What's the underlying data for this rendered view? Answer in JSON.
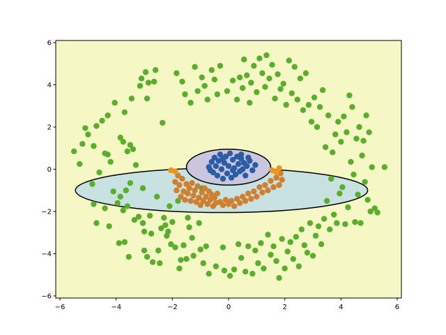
{
  "chart_data": {
    "type": "scatter",
    "title": "",
    "xlabel": "",
    "ylabel": "",
    "xlim": [
      -6.15,
      6.15
    ],
    "ylim": [
      -6.1,
      6.1
    ],
    "xticks": [
      -6,
      -4,
      -2,
      0,
      2,
      4,
      6
    ],
    "yticks": [
      -6,
      -4,
      -2,
      0,
      2,
      4,
      6
    ],
    "xtick_labels": [
      "−6",
      "−4",
      "−2",
      "0",
      "2",
      "4",
      "6"
    ],
    "ytick_labels": [
      "−6",
      "−4",
      "−2",
      "0",
      "2",
      "4",
      "6"
    ],
    "grid": false,
    "legend": "none",
    "colors": {
      "background_region": "#f5f7c5",
      "lower_region": "#c7e2e1",
      "upper_region": "#c9c6de",
      "outer_ring": "#5aaf2a",
      "middle_ring": "#cf7f2e",
      "middle_ring_highlight": "#f0961e",
      "inner_cluster": "#2b5ca6",
      "boundary": "#000000"
    },
    "regions": [
      {
        "name": "lower ellipse",
        "type": "ellipse",
        "center": [
          -0.25,
          -1.0
        ],
        "rx": 5.2,
        "ry": 1.05,
        "color_key": "lower_region"
      },
      {
        "name": "upper cap",
        "type": "ellipse",
        "center": [
          0.0,
          0.1
        ],
        "rx": 1.5,
        "ry": 0.85,
        "color_key": "upper_region"
      }
    ],
    "series": [
      {
        "color_key": "outer_ring",
        "points": [
          [
            -5.5,
            0.85
          ],
          [
            -5.3,
            0.25
          ],
          [
            -5.2,
            1.2
          ],
          [
            -5.1,
            1.95
          ],
          [
            -5.0,
            1.65
          ],
          [
            -4.85,
            -0.7
          ],
          [
            -4.8,
            -1.65
          ],
          [
            -4.8,
            1.1
          ],
          [
            -4.7,
            2.05
          ],
          [
            -4.7,
            -2.55
          ],
          [
            -4.6,
            -0.15
          ],
          [
            -4.5,
            2.3
          ],
          [
            -4.4,
            -1.85
          ],
          [
            -4.4,
            0.75
          ],
          [
            -4.3,
            2.55
          ],
          [
            -4.3,
            0.7
          ],
          [
            -4.25,
            -2.7
          ],
          [
            -4.2,
            0.35
          ],
          [
            -4.1,
            -1.05
          ],
          [
            -4.05,
            3.15
          ],
          [
            -3.95,
            -1.6
          ],
          [
            -3.9,
            -3.5
          ],
          [
            -3.85,
            -1.3
          ],
          [
            -3.85,
            1.5
          ],
          [
            -3.75,
            -1.95
          ],
          [
            -3.75,
            1.3
          ],
          [
            -3.7,
            2.7
          ],
          [
            -3.7,
            -3.45
          ],
          [
            -3.65,
            -1.0
          ],
          [
            -3.6,
            0.85
          ],
          [
            -3.6,
            -1.75
          ],
          [
            -3.55,
            -4.15
          ],
          [
            -3.5,
            -0.65
          ],
          [
            -3.5,
            1.15
          ],
          [
            -3.45,
            3.35
          ],
          [
            -3.4,
            0.95
          ],
          [
            -3.35,
            -2.4
          ],
          [
            -3.3,
            0.2
          ],
          [
            -3.2,
            -2.25
          ],
          [
            -3.15,
            3.95
          ],
          [
            -3.1,
            4.3
          ],
          [
            -3.05,
            -0.9
          ],
          [
            -3.05,
            -2.55
          ],
          [
            -3.0,
            -3.85
          ],
          [
            -3.0,
            -2.95
          ],
          [
            -2.95,
            4.6
          ],
          [
            -2.9,
            -4.15
          ],
          [
            -2.9,
            3.35
          ],
          [
            -2.85,
            4.1
          ],
          [
            -2.8,
            -2.2
          ],
          [
            -2.75,
            -3.05
          ],
          [
            -2.7,
            -4.4
          ],
          [
            -2.65,
            4.15
          ],
          [
            -2.6,
            4.7
          ],
          [
            -2.55,
            -1.3
          ],
          [
            -2.5,
            -3.85
          ],
          [
            -2.45,
            -4.45
          ],
          [
            -2.4,
            -2.8
          ],
          [
            -2.35,
            2.2
          ],
          [
            -2.3,
            -2.3
          ],
          [
            -2.25,
            -2.65
          ],
          [
            -2.2,
            -3.15
          ],
          [
            -2.15,
            -2.95
          ],
          [
            -2.1,
            -1.75
          ],
          [
            -2.05,
            -3.55
          ],
          [
            -2.0,
            -2.5
          ],
          [
            -1.9,
            -3.7
          ],
          [
            -1.85,
            4.55
          ],
          [
            -1.8,
            -1.5
          ],
          [
            -1.75,
            -4.7
          ],
          [
            -1.7,
            -4.3
          ],
          [
            -1.65,
            4.15
          ],
          [
            -1.6,
            -3.6
          ],
          [
            -1.55,
            3.55
          ],
          [
            -1.5,
            -4.25
          ],
          [
            -1.45,
            -2.3
          ],
          [
            -1.4,
            -2.75
          ],
          [
            -1.35,
            3.15
          ],
          [
            -1.3,
            -3.25
          ],
          [
            -1.25,
            -4.1
          ],
          [
            -1.2,
            4.85
          ],
          [
            -1.1,
            3.7
          ],
          [
            -1.05,
            -2.55
          ],
          [
            -1.0,
            -3.8
          ],
          [
            -0.95,
            4.35
          ],
          [
            -0.9,
            -4.45
          ],
          [
            -0.85,
            3.95
          ],
          [
            -0.8,
            -3.65
          ],
          [
            -0.75,
            3.3
          ],
          [
            -0.7,
            -4.95
          ],
          [
            -0.6,
            4.7
          ],
          [
            -0.5,
            4.25
          ],
          [
            -0.45,
            -4.6
          ],
          [
            -0.4,
            3.55
          ],
          [
            -0.3,
            4.9
          ],
          [
            -0.2,
            -3.7
          ],
          [
            -0.15,
            -4.8
          ],
          [
            -0.05,
            3.7
          ],
          [
            0.05,
            -5.05
          ],
          [
            0.15,
            4.2
          ],
          [
            0.2,
            -4.75
          ],
          [
            0.3,
            3.3
          ],
          [
            0.35,
            -3.55
          ],
          [
            0.4,
            4.35
          ],
          [
            0.45,
            -4.2
          ],
          [
            0.5,
            3.85
          ],
          [
            0.55,
            5.2
          ],
          [
            0.6,
            -4.85
          ],
          [
            0.65,
            4.45
          ],
          [
            0.7,
            -3.65
          ],
          [
            0.75,
            3.15
          ],
          [
            0.8,
            4.1
          ],
          [
            0.85,
            -4.95
          ],
          [
            0.9,
            4.9
          ],
          [
            0.95,
            -3.85
          ],
          [
            1.0,
            3.65
          ],
          [
            1.05,
            -4.45
          ],
          [
            1.1,
            5.25
          ],
          [
            1.15,
            -3.5
          ],
          [
            1.2,
            4.55
          ],
          [
            1.25,
            -4.7
          ],
          [
            1.3,
            3.9
          ],
          [
            1.35,
            5.4
          ],
          [
            1.4,
            -3.1
          ],
          [
            1.45,
            4.3
          ],
          [
            1.5,
            -4.05
          ],
          [
            1.55,
            4.95
          ],
          [
            1.6,
            -3.65
          ],
          [
            1.65,
            3.35
          ],
          [
            1.7,
            -4.35
          ],
          [
            1.75,
            4.5
          ],
          [
            1.8,
            -5.15
          ],
          [
            1.85,
            3.8
          ],
          [
            1.9,
            -3.3
          ],
          [
            1.95,
            4.05
          ],
          [
            2.0,
            -4.7
          ],
          [
            2.05,
            3.05
          ],
          [
            2.1,
            -3.9
          ],
          [
            2.15,
            5.15
          ],
          [
            2.2,
            -3.45
          ],
          [
            2.25,
            3.6
          ],
          [
            2.3,
            -4.25
          ],
          [
            2.35,
            4.85
          ],
          [
            2.4,
            -3.2
          ],
          [
            2.45,
            3.3
          ],
          [
            2.5,
            -4.6
          ],
          [
            2.55,
            4.3
          ],
          [
            2.6,
            -2.85
          ],
          [
            2.65,
            2.8
          ],
          [
            2.7,
            -3.6
          ],
          [
            2.75,
            4.55
          ],
          [
            2.8,
            -3.95
          ],
          [
            2.85,
            3.05
          ],
          [
            2.9,
            -2.55
          ],
          [
            2.95,
            2.25
          ],
          [
            3.0,
            -4.1
          ],
          [
            3.05,
            3.4
          ],
          [
            3.1,
            -3.15
          ],
          [
            3.15,
            2.0
          ],
          [
            3.2,
            -2.7
          ],
          [
            3.25,
            2.95
          ],
          [
            3.3,
            -3.55
          ],
          [
            3.35,
            3.75
          ],
          [
            3.4,
            -2.35
          ],
          [
            3.45,
            1.05
          ],
          [
            3.5,
            -1.5
          ],
          [
            3.55,
            2.55
          ],
          [
            3.6,
            -2.85
          ],
          [
            3.65,
            -0.45
          ],
          [
            3.7,
            0.8
          ],
          [
            3.75,
            -2.15
          ],
          [
            3.8,
            1.65
          ],
          [
            3.85,
            -2.55
          ],
          [
            3.9,
            2.25
          ],
          [
            3.95,
            -1.15
          ],
          [
            4.0,
            1.3
          ],
          [
            4.05,
            -0.85
          ],
          [
            4.1,
            2.5
          ],
          [
            4.15,
            -2.6
          ],
          [
            4.2,
            1.75
          ],
          [
            4.25,
            -1.8
          ],
          [
            4.3,
            3.5
          ],
          [
            4.35,
            0.35
          ],
          [
            4.4,
            2.95
          ],
          [
            4.45,
            -0.25
          ],
          [
            4.5,
            -2.5
          ],
          [
            4.55,
            1.45
          ],
          [
            4.6,
            -1.2
          ],
          [
            4.65,
            2.0
          ],
          [
            4.7,
            -2.55
          ],
          [
            4.75,
            0.65
          ],
          [
            4.8,
            1.35
          ],
          [
            4.85,
            -0.6
          ],
          [
            4.9,
            2.55
          ],
          [
            4.95,
            -1.45
          ],
          [
            5.0,
            1.75
          ],
          [
            5.05,
            -2.0
          ],
          [
            5.1,
            0.1
          ],
          [
            5.2,
            -1.85
          ],
          [
            5.3,
            -2.05
          ],
          [
            5.55,
            0.1
          ],
          [
            -0.95,
            -0.9
          ]
        ]
      },
      {
        "color_key": "middle_ring",
        "points": [
          [
            -1.9,
            -0.6
          ],
          [
            -1.85,
            -1.0
          ],
          [
            -1.8,
            -0.3
          ],
          [
            -1.75,
            -0.75
          ],
          [
            -1.7,
            -1.3
          ],
          [
            -1.65,
            -0.45
          ],
          [
            -1.6,
            -1.05
          ],
          [
            -1.55,
            -1.45
          ],
          [
            -1.5,
            -0.7
          ],
          [
            -1.45,
            -1.15
          ],
          [
            -1.4,
            -0.9
          ],
          [
            -1.35,
            -1.5
          ],
          [
            -1.3,
            -0.65
          ],
          [
            -1.25,
            -1.25
          ],
          [
            -1.2,
            -1.0
          ],
          [
            -1.15,
            -1.55
          ],
          [
            -1.1,
            -0.8
          ],
          [
            -1.05,
            -1.35
          ],
          [
            -1.0,
            -1.7
          ],
          [
            -0.95,
            -1.1
          ],
          [
            -0.9,
            -1.5
          ],
          [
            -0.85,
            -0.9
          ],
          [
            -0.8,
            -1.3
          ],
          [
            -0.75,
            -1.65
          ],
          [
            -0.7,
            -1.05
          ],
          [
            -0.65,
            -1.45
          ],
          [
            -0.6,
            -1.2
          ],
          [
            -0.55,
            -1.75
          ],
          [
            -0.5,
            -1.35
          ],
          [
            -0.45,
            -1.6
          ],
          [
            -0.4,
            -1.15
          ],
          [
            -0.3,
            -1.55
          ],
          [
            -0.2,
            -1.7
          ],
          [
            -0.1,
            -1.45
          ],
          [
            0.0,
            -1.65
          ],
          [
            0.1,
            -1.5
          ],
          [
            0.2,
            -1.75
          ],
          [
            0.3,
            -1.4
          ],
          [
            0.4,
            -1.6
          ],
          [
            0.5,
            -1.3
          ],
          [
            0.6,
            -1.5
          ],
          [
            0.7,
            -1.15
          ],
          [
            0.8,
            -1.4
          ],
          [
            0.9,
            -1.05
          ],
          [
            1.0,
            -1.3
          ],
          [
            1.1,
            -0.85
          ],
          [
            1.2,
            -1.1
          ],
          [
            1.3,
            -0.75
          ],
          [
            1.4,
            -1.0
          ],
          [
            1.5,
            -0.55
          ],
          [
            1.6,
            -0.85
          ],
          [
            1.7,
            -0.4
          ],
          [
            1.8,
            -0.75
          ],
          [
            1.85,
            -0.2
          ],
          [
            1.9,
            -0.5
          ]
        ]
      },
      {
        "color_key": "middle_ring_highlight",
        "points": [
          [
            -2.05,
            -0.05
          ],
          [
            -1.9,
            -0.1
          ],
          [
            1.55,
            -0.05
          ],
          [
            1.7,
            -0.15
          ],
          [
            1.8,
            0.05
          ]
        ]
      },
      {
        "color_key": "inner_cluster",
        "points": [
          [
            -0.7,
            0.1
          ],
          [
            -0.6,
            0.35
          ],
          [
            -0.55,
            -0.15
          ],
          [
            -0.5,
            0.55
          ],
          [
            -0.45,
            0.15
          ],
          [
            -0.4,
            -0.3
          ],
          [
            -0.35,
            0.4
          ],
          [
            -0.3,
            0.7
          ],
          [
            -0.25,
            0.0
          ],
          [
            -0.2,
            -0.45
          ],
          [
            -0.15,
            0.3
          ],
          [
            -0.1,
            0.6
          ],
          [
            -0.05,
            -0.2
          ],
          [
            0.0,
            0.15
          ],
          [
            0.05,
            0.75
          ],
          [
            0.1,
            -0.4
          ],
          [
            0.15,
            0.45
          ],
          [
            0.2,
            0.05
          ],
          [
            0.25,
            -0.25
          ],
          [
            0.3,
            0.6
          ],
          [
            0.35,
            0.25
          ],
          [
            0.4,
            -0.1
          ],
          [
            0.45,
            0.5
          ],
          [
            0.5,
            0.0
          ],
          [
            0.55,
            0.3
          ],
          [
            0.6,
            -0.3
          ],
          [
            0.65,
            0.15
          ],
          [
            0.75,
            0.4
          ],
          [
            0.85,
            -0.05
          ],
          [
            0.95,
            0.2
          ],
          [
            -0.65,
            -0.05
          ],
          [
            0.7,
            0.55
          ],
          [
            -0.2,
            0.5
          ],
          [
            0.15,
            -0.05
          ],
          [
            0.45,
            0.7
          ]
        ]
      }
    ]
  }
}
